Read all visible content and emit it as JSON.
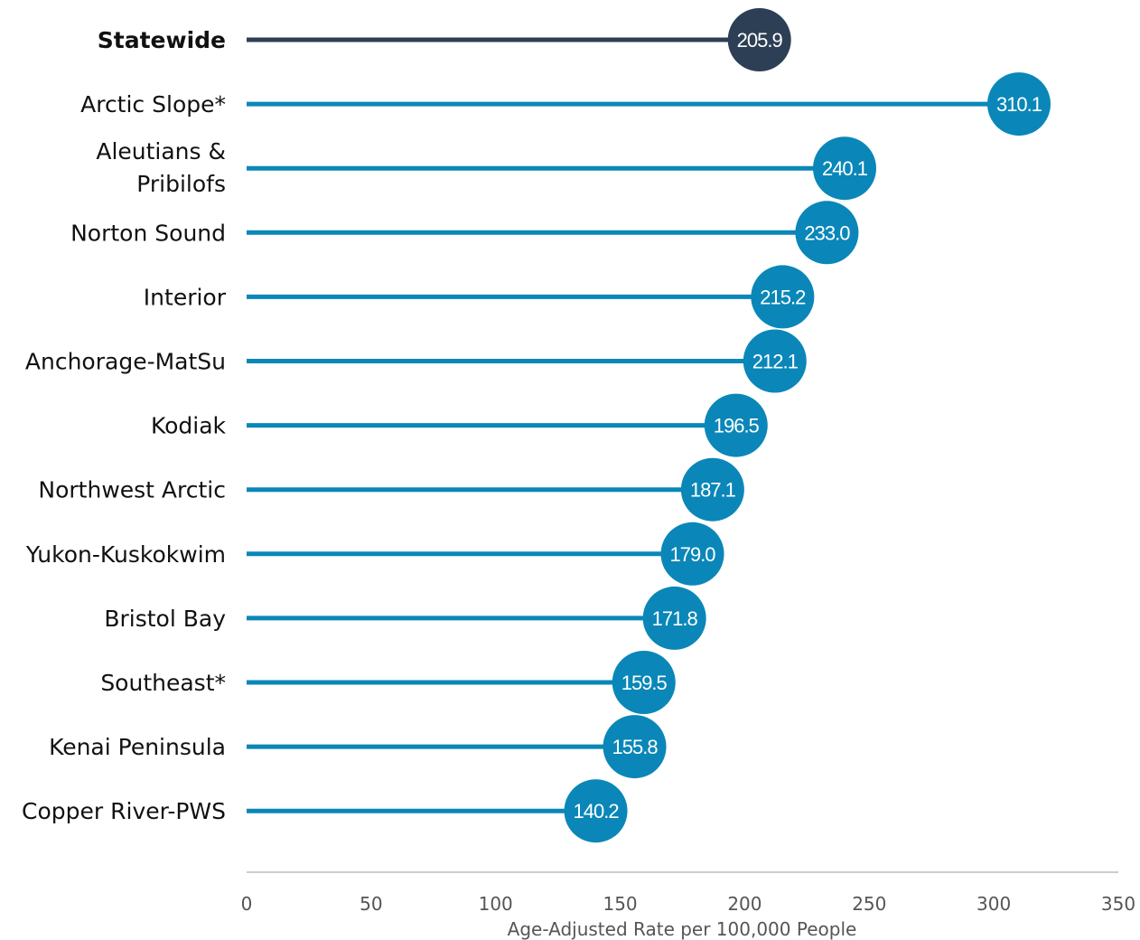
{
  "chart_data": {
    "type": "lollipop",
    "categories": [
      "Statewide",
      "Arctic Slope*",
      "Aleutians & Pribilofs",
      "Norton Sound",
      "Interior",
      "Anchorage-MatSu",
      "Kodiak",
      "Northwest Arctic",
      "Yukon-Kuskokwim",
      "Bristol Bay",
      "Southeast*",
      "Kenai Peninsula",
      "Copper River-PWS"
    ],
    "values": [
      205.9,
      310.1,
      240.1,
      233.0,
      215.2,
      212.1,
      196.5,
      187.1,
      179.0,
      171.8,
      159.5,
      155.8,
      140.2
    ],
    "value_labels": [
      "205.9",
      "310.1",
      "240.1",
      "233.0",
      "215.2",
      "212.1",
      "196.5",
      "187.1",
      "179.0",
      "171.8",
      "159.5",
      "155.8",
      "140.2"
    ],
    "highlight_index": 0,
    "xlabel": "Age-Adjusted Rate per 100,000 People",
    "ylabel": "",
    "xlim": [
      0,
      350
    ],
    "xticks": [
      0,
      50,
      100,
      150,
      200,
      250,
      300,
      350
    ],
    "grid": false,
    "legend": "none",
    "colors": {
      "highlight": "#2d3f55",
      "series": "#0a87b8",
      "axis": "#cccccc"
    }
  }
}
